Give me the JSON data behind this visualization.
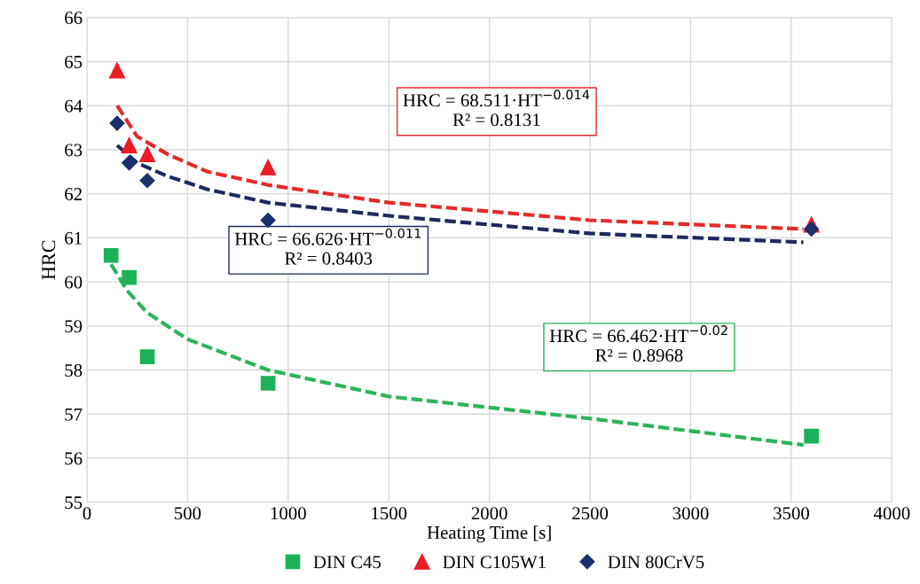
{
  "chart_data": {
    "type": "scatter",
    "xlabel": "Heating Time [s]",
    "ylabel": "HRC",
    "xlim": [
      0,
      4000
    ],
    "ylim": [
      55,
      66
    ],
    "xticks": [
      0,
      500,
      1000,
      1500,
      2000,
      2500,
      3000,
      3500,
      4000
    ],
    "yticks": [
      55,
      56,
      57,
      58,
      59,
      60,
      61,
      62,
      63,
      64,
      65,
      66
    ],
    "grid": true,
    "legend": "bottom",
    "series": [
      {
        "name": "DIN C45",
        "color": "#1db25a",
        "marker": "square",
        "x": [
          120,
          210,
          300,
          900,
          3600
        ],
        "values": [
          60.6,
          60.1,
          58.3,
          57.7,
          56.5
        ]
      },
      {
        "name": "DIN C105W1",
        "color": "#ec1c24",
        "marker": "triangle",
        "x": [
          150,
          210,
          300,
          900,
          3600
        ],
        "values": [
          64.8,
          63.1,
          62.9,
          62.6,
          61.3
        ]
      },
      {
        "name": "DIN 80CrV5",
        "color": "#1a2f6e",
        "marker": "diamond",
        "x": [
          150,
          210,
          300,
          900,
          3600
        ],
        "values": [
          63.6,
          62.7,
          62.3,
          61.4,
          61.2
        ]
      },
      {
        "type": "line",
        "line_style": "dashed",
        "color": "#e32b2b",
        "x": [
          150,
          250,
          400,
          600,
          900,
          1500,
          2500,
          3560
        ],
        "values": [
          64.0,
          63.3,
          62.9,
          62.5,
          62.2,
          61.8,
          61.4,
          61.2
        ]
      },
      {
        "type": "line",
        "line_style": "dashed",
        "color": "#1c2b5e",
        "x": [
          150,
          250,
          400,
          600,
          900,
          1500,
          2500,
          3560
        ],
        "values": [
          63.1,
          62.7,
          62.4,
          62.1,
          61.8,
          61.5,
          61.1,
          60.9
        ]
      },
      {
        "type": "line",
        "line_style": "dashed",
        "color": "#2db35c",
        "x": [
          120,
          200,
          300,
          500,
          900,
          1500,
          2500,
          3560
        ],
        "values": [
          60.4,
          59.8,
          59.3,
          58.7,
          58.0,
          57.4,
          56.9,
          56.3
        ]
      }
    ],
    "annotations": [
      "HRC = 68.511·HT$^{−0.014}$\nR² = 0.8131",
      "HRC = 66.626·HT$^{−0.011}$\nR² = 0.8403",
      "HRC = 66.462·HT$^{−0.02}$\nR² = 0.8968"
    ]
  }
}
